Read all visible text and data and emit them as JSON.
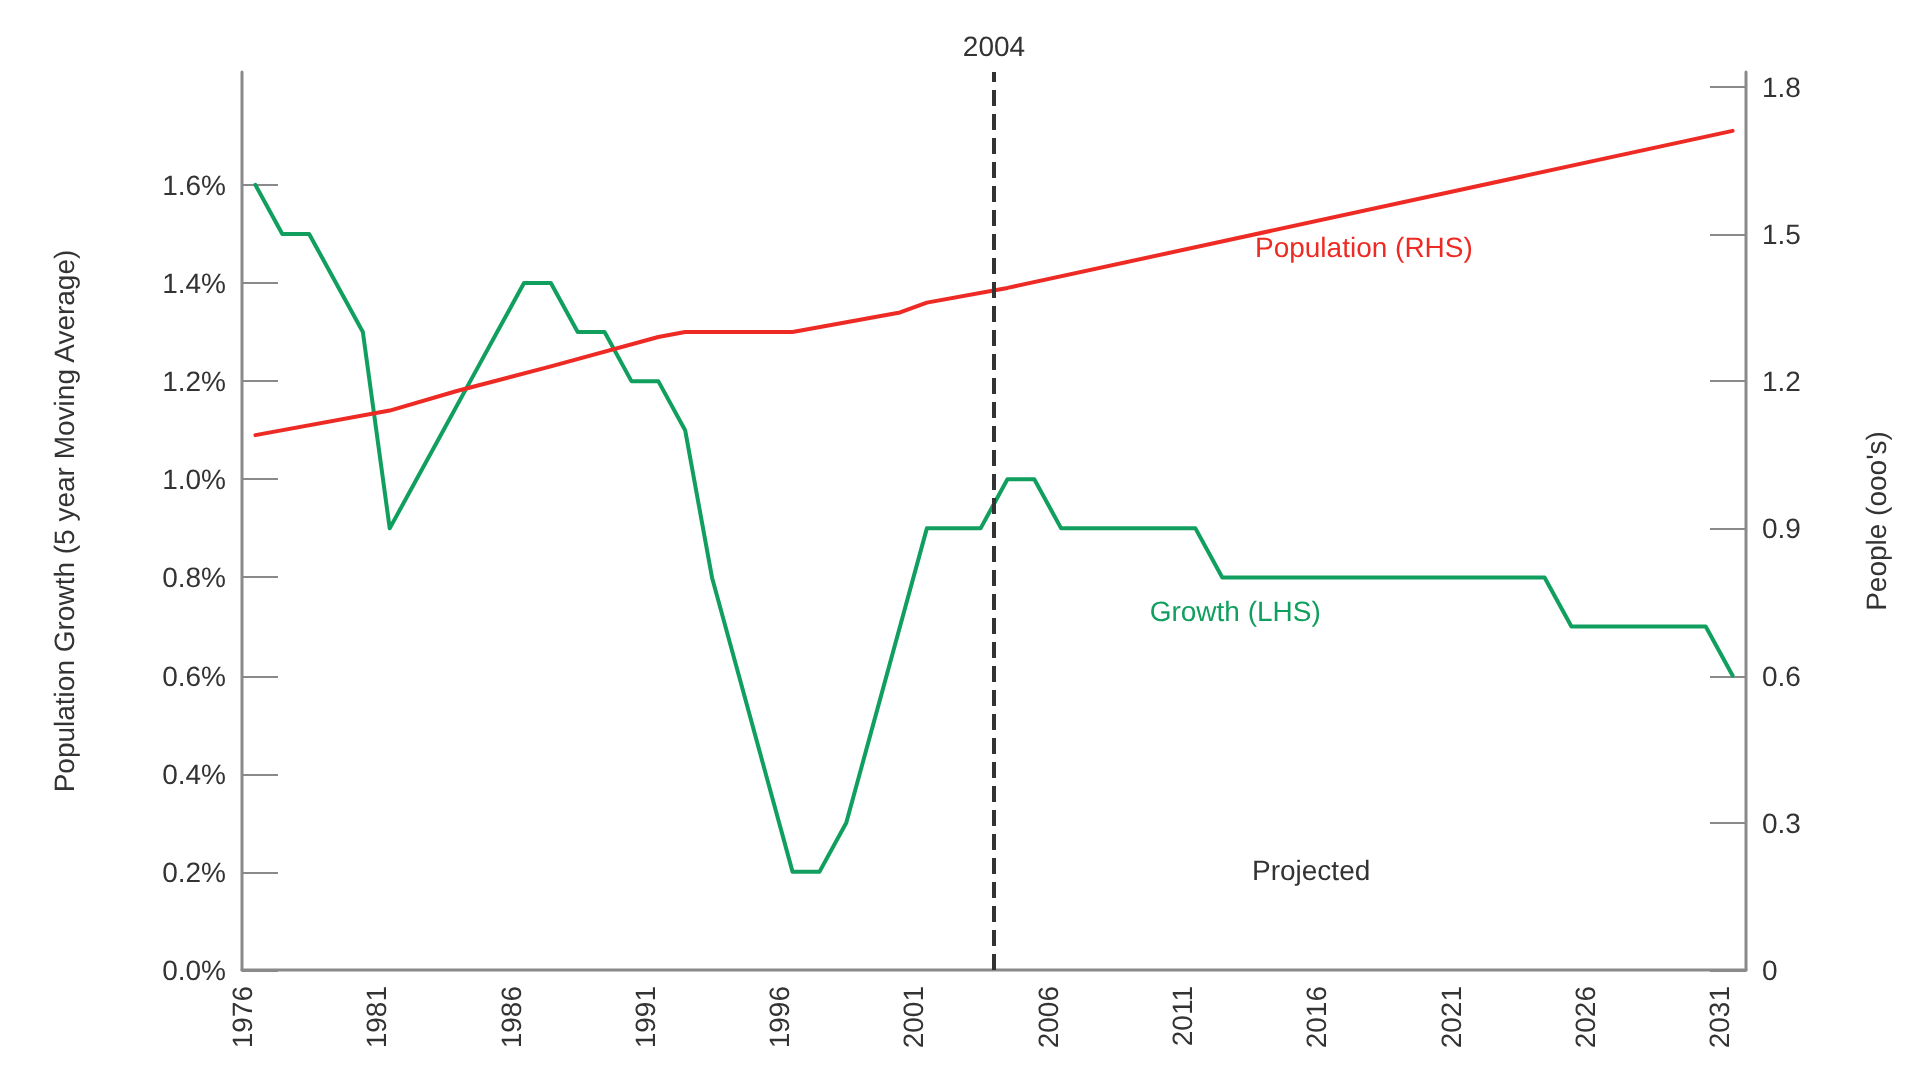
{
  "chart_data": {
    "type": "line",
    "x": [
      1976.5,
      1977.5,
      1978.5,
      1979.5,
      1980.5,
      1981.5,
      1982.5,
      1983.5,
      1984.5,
      1985.5,
      1986.5,
      1987.5,
      1988.5,
      1989.5,
      1990.5,
      1991.5,
      1992.5,
      1993.5,
      1994.5,
      1995.5,
      1996.5,
      1997.5,
      1998.5,
      1999.5,
      2000.5,
      2001.5,
      2002.5,
      2003.5,
      2004.5,
      2005.5,
      2006.5,
      2007.5,
      2008.5,
      2009.5,
      2010.5,
      2011.5,
      2012.5,
      2013.5,
      2014.5,
      2015.5,
      2016.5,
      2017.5,
      2018.5,
      2019.5,
      2020.5,
      2021.5,
      2022.5,
      2023.5,
      2024.5,
      2025.5,
      2026.5,
      2027.5,
      2028.5,
      2029.5,
      2030.5,
      2031.5
    ],
    "series": [
      {
        "name": "Growth (LHS)",
        "color": "#109f5f",
        "values": [
          1.6,
          1.5,
          1.5,
          1.4,
          1.3,
          0.9,
          1.0,
          1.1,
          1.2,
          1.3,
          1.4,
          1.4,
          1.3,
          1.3,
          1.2,
          1.2,
          1.1,
          0.8,
          0.6,
          0.4,
          0.2,
          0.2,
          0.3,
          0.5,
          0.7,
          0.9,
          0.9,
          0.9,
          1.0,
          1.0,
          0.9,
          0.9,
          0.9,
          0.9,
          0.9,
          0.9,
          0.8,
          0.8,
          0.8,
          0.8,
          0.8,
          0.8,
          0.8,
          0.8,
          0.8,
          0.8,
          0.8,
          0.8,
          0.8,
          0.7,
          0.7,
          0.7,
          0.7,
          0.7,
          0.7,
          0.6
        ]
      },
      {
        "name": "Population (RHS)",
        "color": "#ee2a24",
        "axis": "y2",
        "x": [
          1976.5,
          1981.5,
          1984,
          1987.5,
          1991.5,
          1992.5,
          1995.5,
          1996.5,
          1998.5,
          2000.5,
          2001.5,
          2004.5,
          2031.5
        ],
        "values": [
          1.09,
          1.14,
          1.18,
          1.23,
          1.29,
          1.3,
          1.3,
          1.3,
          1.32,
          1.34,
          1.36,
          1.39,
          1.71
        ]
      }
    ],
    "xlim": [
      1976,
      2032
    ],
    "xticks": [
      1976,
      1981,
      1986,
      1991,
      1996,
      2001,
      2006,
      2011,
      2016,
      2021,
      2026,
      2031
    ],
    "ylim": [
      0,
      1.83
    ],
    "yticks": [
      {
        "value": 0,
        "label": "0.0%"
      },
      {
        "value": 0.2,
        "label": "0.2%"
      },
      {
        "value": 0.4,
        "label": "0.4%"
      },
      {
        "value": 0.6,
        "label": "0.6%"
      },
      {
        "value": 0.8,
        "label": "0.8%"
      },
      {
        "value": 1.0,
        "label": "1.0%"
      },
      {
        "value": 1.2,
        "label": "1.2%"
      },
      {
        "value": 1.4,
        "label": "1.4%"
      },
      {
        "value": 1.6,
        "label": "1.6%"
      }
    ],
    "y2lim": [
      0,
      1.83
    ],
    "y2ticks": [
      0,
      0.3,
      0.6,
      0.9,
      1.2,
      1.5,
      1.8
    ],
    "ylabel": "Population Growth (5 year Moving Average)",
    "y2label": "People (ooo's)",
    "ref_lines": [
      {
        "axis": "x",
        "value": 2004,
        "label": "2004",
        "color": "#333333",
        "line_style": "dashed"
      }
    ],
    "annotations": [
      "Projected"
    ],
    "grid": false,
    "legend": false,
    "marker": "none",
    "line_style": "solid"
  }
}
